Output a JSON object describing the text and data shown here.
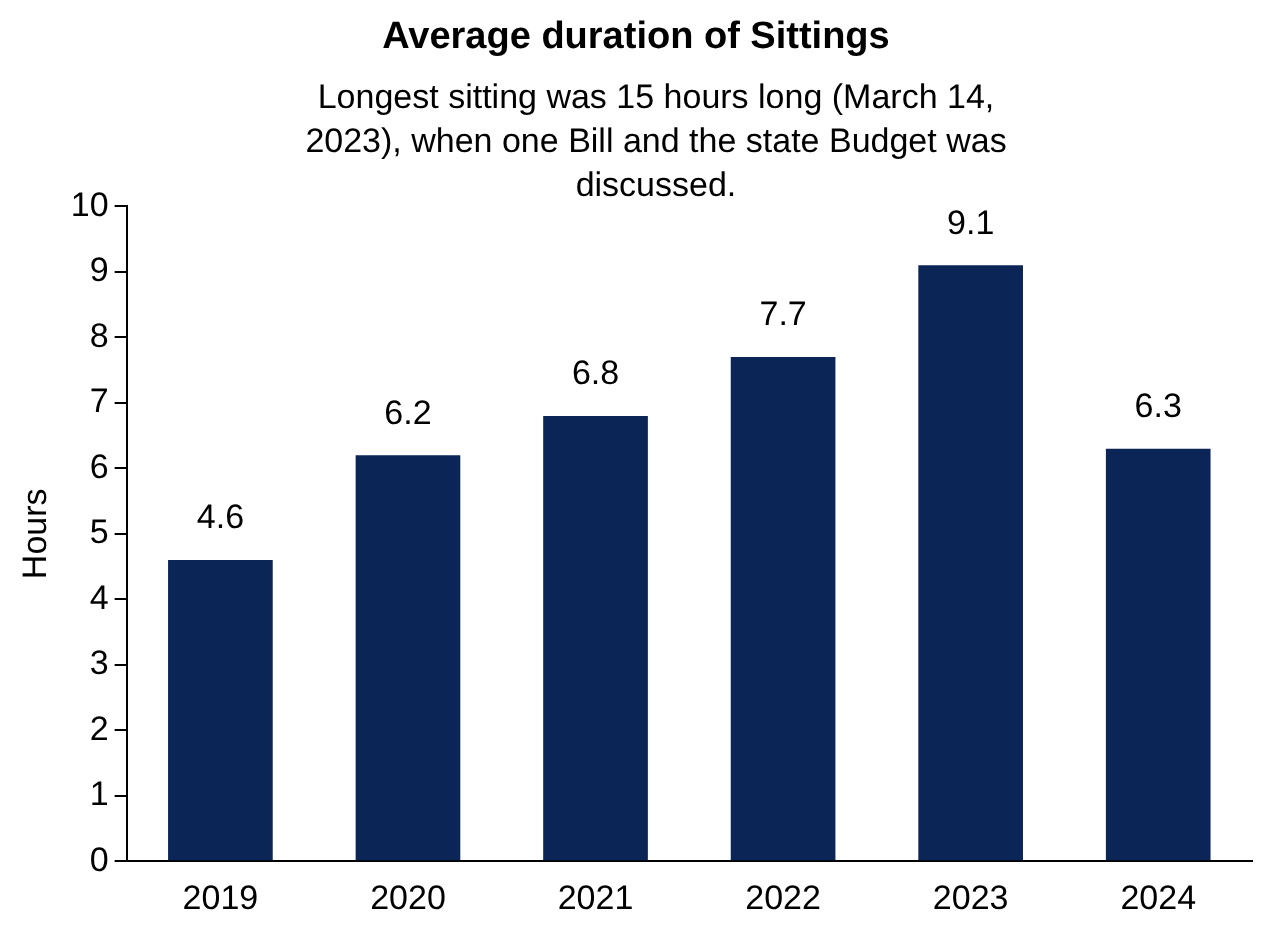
{
  "chart_data": {
    "type": "bar",
    "title": "Average duration of Sittings",
    "subtitle": "Longest sitting was 15 hours long (March 14, 2023), when one Bill and the state Budget was discussed.",
    "ylabel": "Hours",
    "categories": [
      "2019",
      "2020",
      "2021",
      "2022",
      "2023",
      "2024"
    ],
    "values": [
      4.6,
      6.2,
      6.8,
      7.7,
      9.1,
      6.3
    ],
    "color": "#0b2556",
    "ylim": [
      0,
      10
    ],
    "yticks": [
      0,
      1,
      2,
      3,
      4,
      5,
      6,
      7,
      8,
      9,
      10
    ],
    "data_labels": true,
    "grid": false,
    "legend": false
  }
}
